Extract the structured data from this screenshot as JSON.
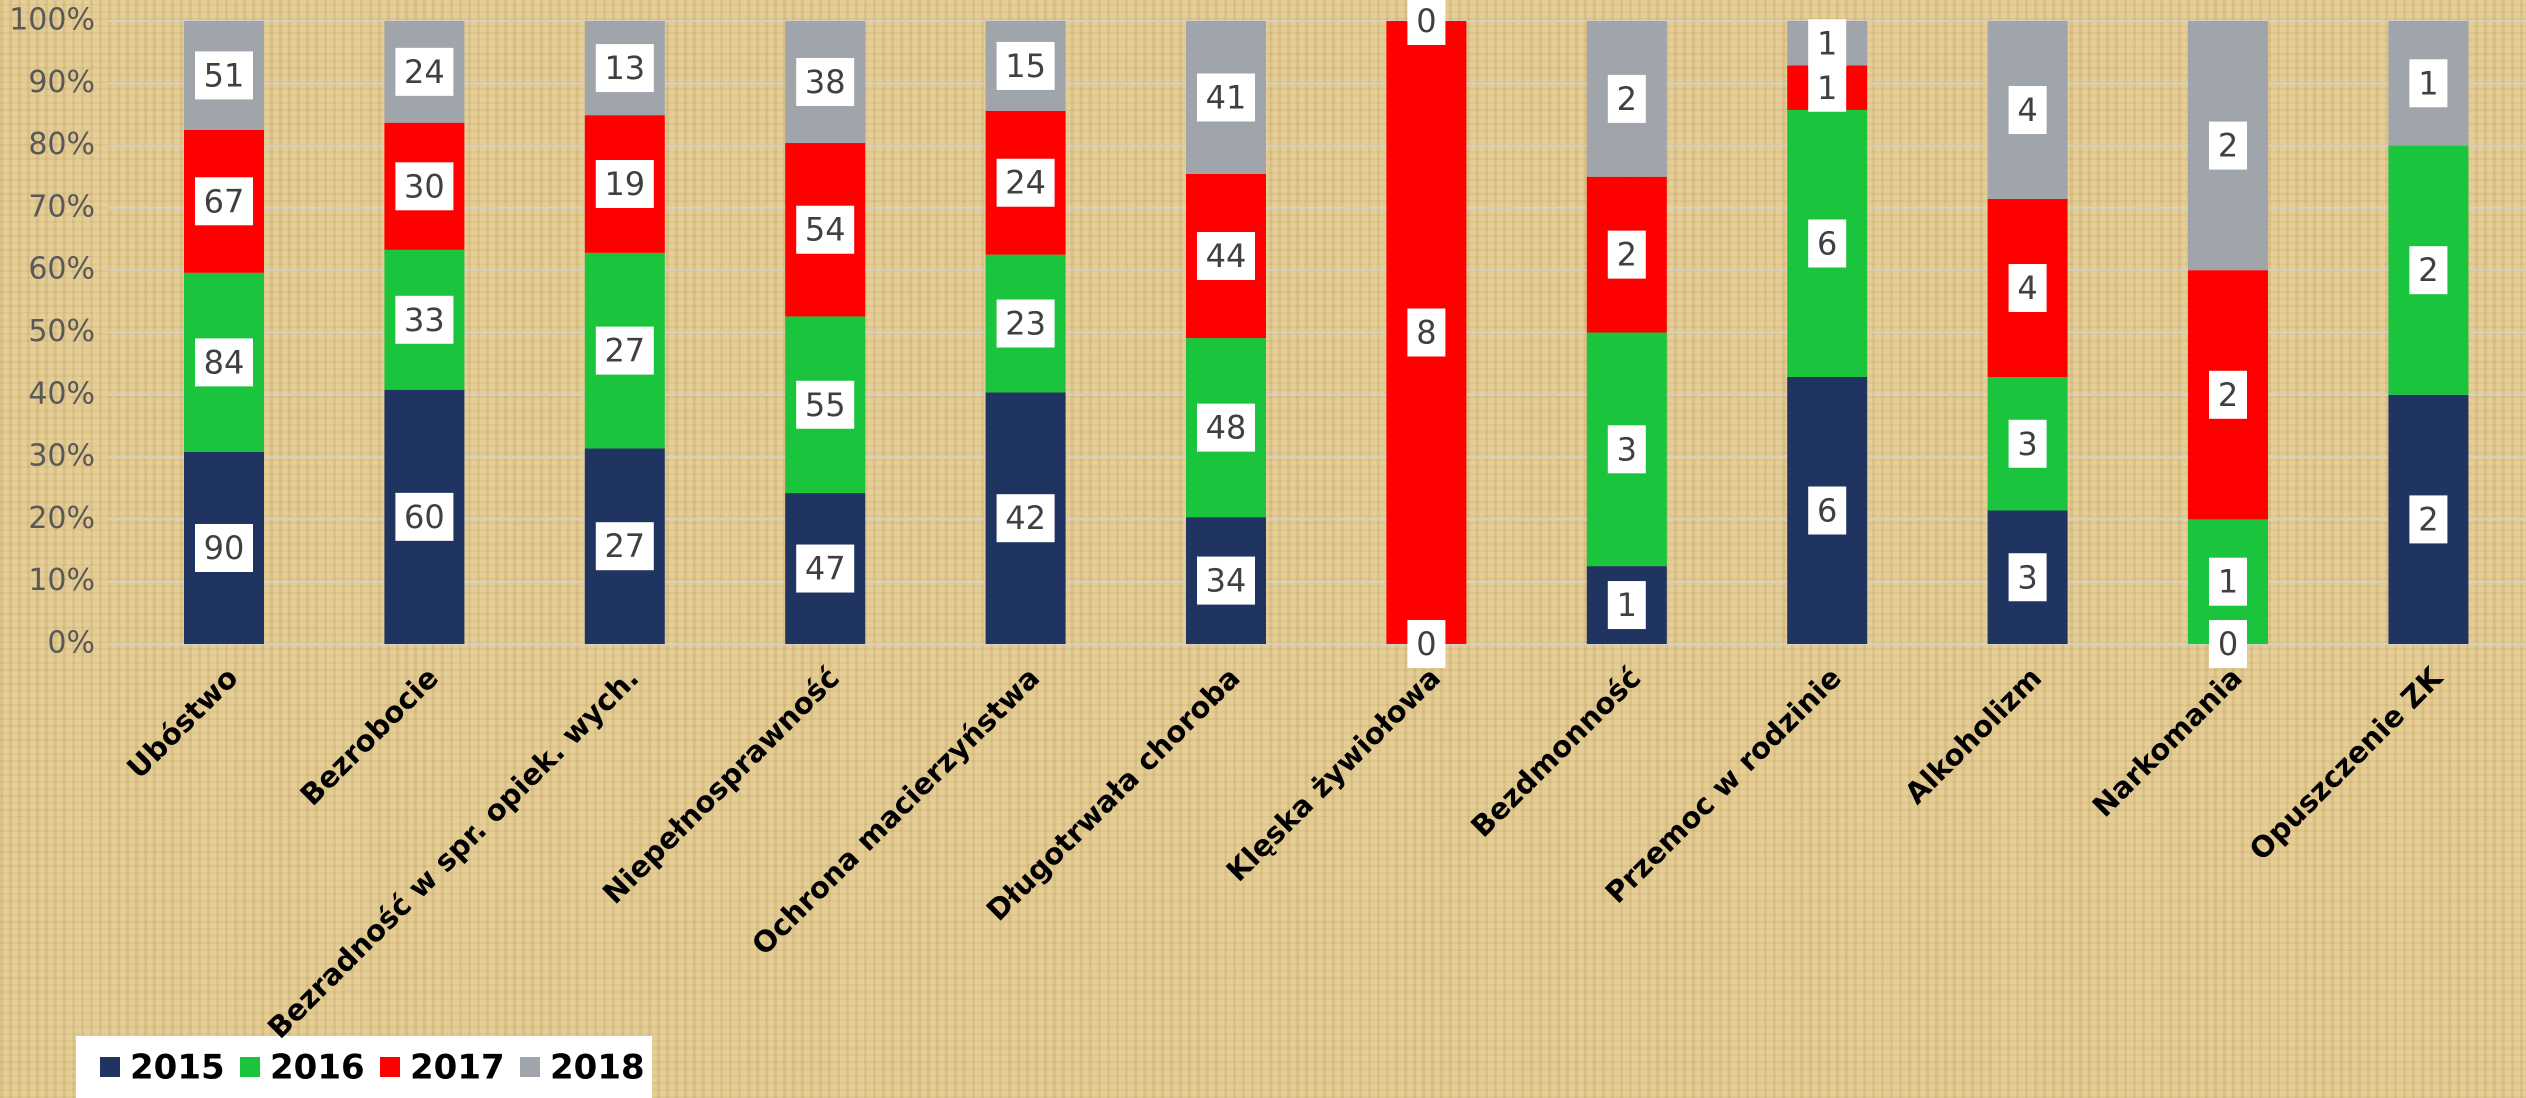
{
  "chart_data": {
    "type": "stacked_percent_bar",
    "categories": [
      "Ubóstwo",
      "Bezrobocie",
      "Bezradność w spr. opiek. wych.",
      "Niepełnosprawność",
      "Ochrona macierzyństwa",
      "Długotrwała choroba",
      "Klęska żywiołowa",
      "Bezdmonność",
      "Przemoc w rodzinie",
      "Alkoholizm",
      "Narkomania",
      "Opuszczenie ZK"
    ],
    "series": [
      {
        "name": "2015",
        "color": "#1f3461",
        "values": [
          90,
          60,
          27,
          47,
          42,
          34,
          0,
          1,
          6,
          3,
          0,
          2
        ]
      },
      {
        "name": "2016",
        "color": "#1ac43c",
        "values": [
          84,
          33,
          27,
          55,
          23,
          48,
          null,
          3,
          6,
          3,
          1,
          2
        ]
      },
      {
        "name": "2017",
        "color": "#ff0000",
        "values": [
          67,
          30,
          19,
          54,
          24,
          44,
          8,
          2,
          1,
          4,
          2,
          null
        ]
      },
      {
        "name": "2018",
        "color": "#a0a4ab",
        "values": [
          51,
          24,
          13,
          38,
          15,
          41,
          0,
          2,
          1,
          4,
          2,
          1
        ]
      }
    ],
    "ylim": [
      0,
      100
    ],
    "yticks": [
      {
        "value": 0,
        "label": "0%"
      },
      {
        "value": 10,
        "label": "10%"
      },
      {
        "value": 20,
        "label": "20%"
      },
      {
        "value": 30,
        "label": "30%"
      },
      {
        "value": 40,
        "label": "40%"
      },
      {
        "value": 50,
        "label": "50%"
      },
      {
        "value": 60,
        "label": "60%"
      },
      {
        "value": 70,
        "label": "70%"
      },
      {
        "value": 80,
        "label": "80%"
      },
      {
        "value": 90,
        "label": "90%"
      },
      {
        "value": 100,
        "label": "100%"
      }
    ],
    "grid": true,
    "legend": "bottom-left"
  }
}
